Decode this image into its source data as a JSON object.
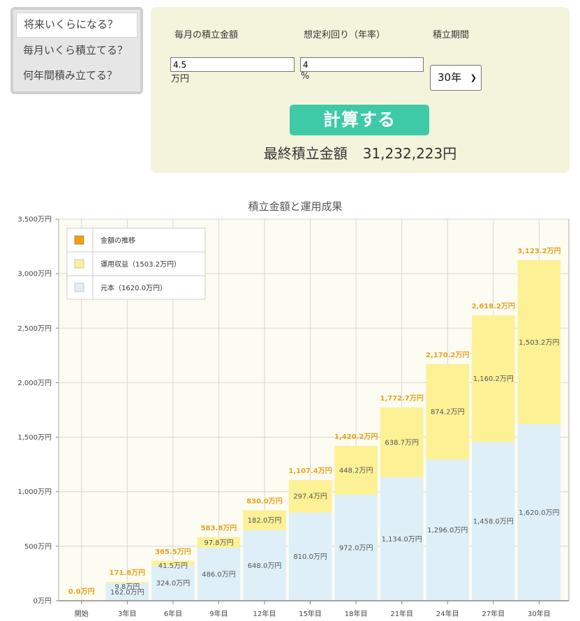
{
  "tabs": [
    {
      "label": "将来いくらになる？"
    },
    {
      "label": "毎月いくら積立てる？"
    },
    {
      "label": "何年間積み立てる？"
    }
  ],
  "form": {
    "monthly_label": "毎月の積立金額",
    "monthly_value": "4.5",
    "monthly_unit": "万円",
    "rate_label": "想定利回り（年率）",
    "rate_value": "4",
    "rate_unit": "%",
    "period_label": "積立期間",
    "period_value": "30年",
    "calc_button": "計算する",
    "result_label": "最終積立金額",
    "result_value": "31,232,223円"
  },
  "chart_data": {
    "type": "bar",
    "stacked": true,
    "title": "積立金額と運用成果",
    "categories": [
      "開始",
      "3年目",
      "6年目",
      "9年目",
      "12年目",
      "15年目",
      "18年目",
      "21年目",
      "24年目",
      "27年目",
      "30年目"
    ],
    "ylim": [
      0,
      3500
    ],
    "yticks": [
      "0万円",
      "500万円",
      "1,000万円",
      "1,500万円",
      "2,000万円",
      "2,500万円",
      "3,000万円",
      "3,500万円"
    ],
    "grid": true,
    "legend_position": "top-left",
    "colors": {
      "principal": "#dfeff7",
      "gain": "#fdf195",
      "total_line": "#f5a000",
      "total_label": "#e8a21a",
      "plot_bg": "#fdfcf2"
    },
    "legend": [
      {
        "label": "金額の推移"
      },
      {
        "label": "運用収益（1503.2万円）"
      },
      {
        "label": "元本（1620.0万円）"
      }
    ],
    "series": [
      {
        "name": "元本",
        "values": [
          0,
          162.0,
          324.0,
          486.0,
          648.0,
          810.0,
          972.0,
          1134.0,
          1296.0,
          1458.0,
          1620.0
        ],
        "labels": [
          "",
          "162.0万円",
          "324.0万円",
          "486.0万円",
          "648.0万円",
          "810.0万円",
          "972.0万円",
          "1,134.0万円",
          "1,296.0万円",
          "1,458.0万円",
          "1,620.0万円"
        ]
      },
      {
        "name": "運用収益",
        "values": [
          0,
          9.8,
          41.5,
          97.8,
          182.0,
          297.4,
          448.2,
          638.7,
          874.2,
          1160.2,
          1503.2
        ],
        "labels": [
          "",
          "9.8万円",
          "41.5万円",
          "97.8万円",
          "182.0万円",
          "297.4万円",
          "448.2万円",
          "638.7万円",
          "874.2万円",
          "1,160.2万円",
          "1,503.2万円"
        ]
      }
    ],
    "totals": [
      0.0,
      171.8,
      365.5,
      583.8,
      830.0,
      1107.4,
      1420.2,
      1772.7,
      2170.2,
      2618.2,
      3123.2
    ],
    "total_labels": [
      "0.0万円",
      "171.8万円",
      "365.5万円",
      "583.8万円",
      "830.0万円",
      "1,107.4万円",
      "1,420.2万円",
      "1,772.7万円",
      "2,170.2万円",
      "2,618.2万円",
      "3,123.2万円"
    ]
  }
}
